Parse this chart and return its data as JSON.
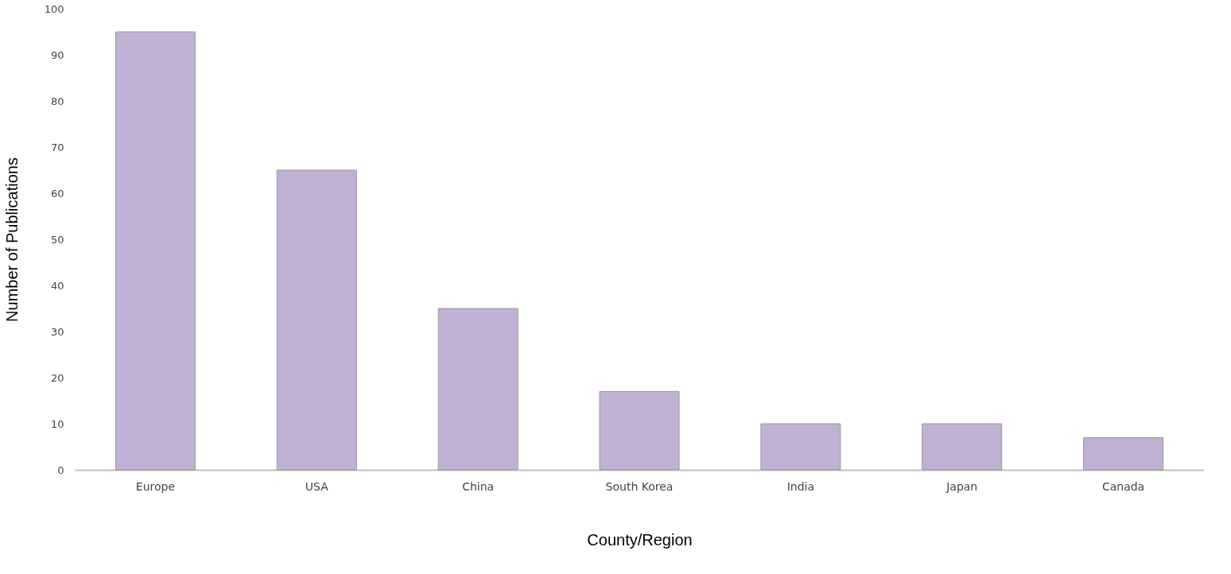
{
  "chart_data": {
    "type": "bar",
    "xlabel": "County/Region",
    "ylabel": "Number of Publications",
    "categories": [
      "Europe",
      "USA",
      "China",
      "South Korea",
      "India",
      "Japan",
      "Canada"
    ],
    "values": [
      95,
      65,
      35,
      17,
      10,
      10,
      7
    ],
    "color": "#c0b0d4",
    "ylim": [
      0,
      100
    ],
    "yticks": [
      0,
      10,
      20,
      30,
      40,
      50,
      60,
      70,
      80,
      90,
      100
    ],
    "grid": false
  }
}
